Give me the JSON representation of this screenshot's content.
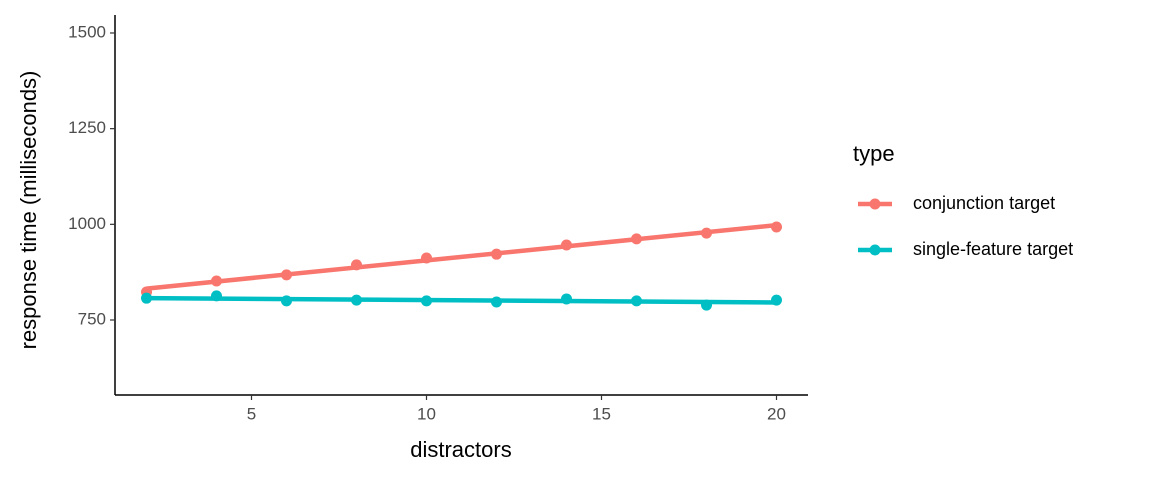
{
  "chart_data": {
    "type": "scatter",
    "x_label": "distractors",
    "y_label": "response time (milliseconds)",
    "x": [
      2,
      4,
      6,
      8,
      10,
      12,
      14,
      16,
      18,
      20
    ],
    "series": [
      {
        "name": "conjunction target",
        "color": "#F8766D",
        "values": [
          823,
          852,
          868,
          894,
          912,
          922,
          946,
          962,
          977,
          993
        ]
      },
      {
        "name": "single-feature target",
        "color": "#00BFC4",
        "values": [
          807,
          813,
          800,
          802,
          800,
          797,
          805,
          800,
          789,
          802
        ]
      }
    ],
    "trend_line": true,
    "legend_title": "type",
    "legend_position": "right",
    "xlim": [
      1.1,
      20.9
    ],
    "xticks": [
      5,
      10,
      15,
      20
    ],
    "ylim": [
      554,
      1547
    ],
    "yticks": [
      750,
      1000,
      1250,
      1500
    ],
    "grid": false
  }
}
